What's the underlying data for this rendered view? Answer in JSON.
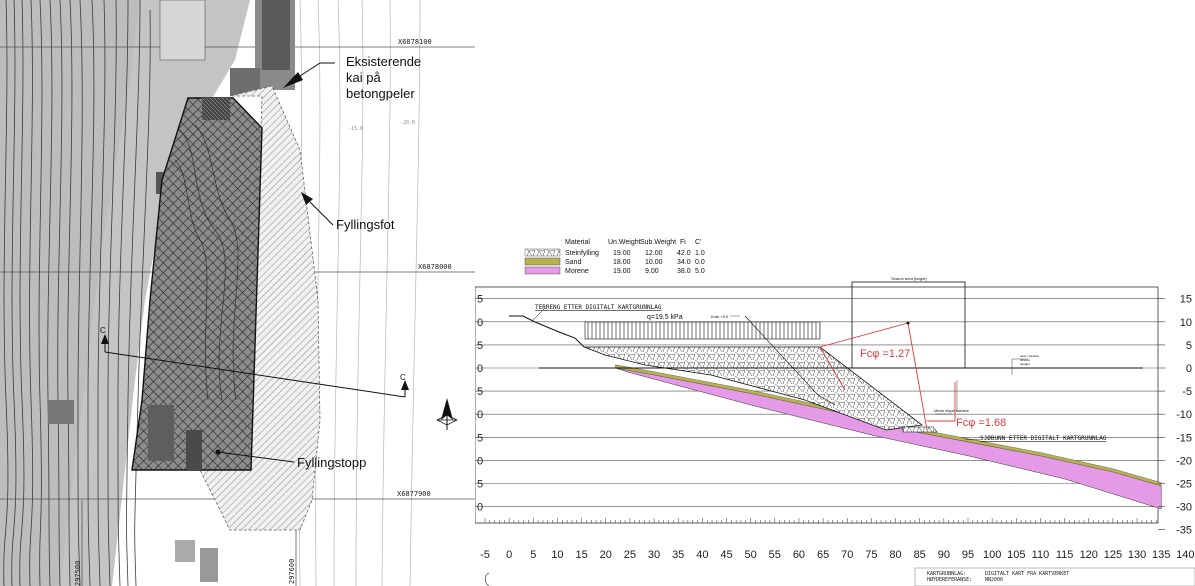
{
  "map": {
    "coord_top": "X6878100",
    "coord_mid": "X6878000",
    "coord_bottom": "X6877900",
    "coord_left_vertical": "297500",
    "coord_bottom_vertical": "297600",
    "contour_label_1": "-15.0",
    "contour_label_2": "-20.0",
    "section_marker_left": "C",
    "section_marker_right": "C",
    "label_kai": [
      "Eksisterende",
      "kai på",
      "betongpeler"
    ],
    "label_fyllingsfot": "Fyllingsfot",
    "label_fyllingstopp": "Fyllingstopp"
  },
  "section": {
    "legend": {
      "headers": [
        "Material",
        "Un.Weight",
        "Sub.Weight",
        "Fi",
        "C'"
      ],
      "rows": [
        {
          "name": "Steinfylling",
          "un_weight": "19.00",
          "sub_weight": "12.00",
          "fi": "42.0",
          "c": "1.0",
          "color": "#ffffff",
          "pattern": "stone"
        },
        {
          "name": "Sand",
          "un_weight": "18.00",
          "sub_weight": "10.00",
          "fi": "34.0",
          "c": "0.0",
          "color": "#b8b24e",
          "pattern": "solid"
        },
        {
          "name": "Morene",
          "un_weight": "19.00",
          "sub_weight": "9.00",
          "fi": "38.0",
          "c": "5.0",
          "color": "#e59ae8",
          "pattern": "solid"
        }
      ]
    },
    "terrain_label": "TERRENG ETTER DIGITALT KARTGRUNNLAG",
    "load_label": "q=19.5  kPa",
    "kote_label": "Kote +3.0",
    "search_area_label": "Search area (target)",
    "min_slip_label": "Mean slope surface",
    "fc1_label": "Fcφ =1.27",
    "fc2_label": "Fcφ =1.68",
    "seabed_label": "SJØBUNN ETTER DIGITALT KARTGRUNNLAG",
    "note_small": [
      "tekst i tabellen",
      "tilsvarer",
      "detaljer"
    ],
    "x_ticks": [
      -5,
      0,
      5,
      10,
      15,
      20,
      25,
      30,
      35,
      40,
      45,
      50,
      55,
      60,
      65,
      70,
      75,
      80,
      85,
      90,
      95,
      100,
      105,
      110,
      115,
      120,
      125,
      130,
      135,
      140
    ],
    "y_ticks_right": [
      15,
      10,
      5,
      0,
      -5,
      -10,
      -15,
      -20,
      -25,
      -30,
      -35
    ],
    "title_block": {
      "row1_key": "KARTGRUNNLAG:",
      "row1_val": "DIGITALT KART FRA KARTVERKET",
      "row2_key": "HØYDEREFERANSE:",
      "row2_val": "NN2000"
    },
    "fc_color": "#e0393b",
    "morene_color": "#e59ae8",
    "sand_color": "#b8b24e"
  }
}
